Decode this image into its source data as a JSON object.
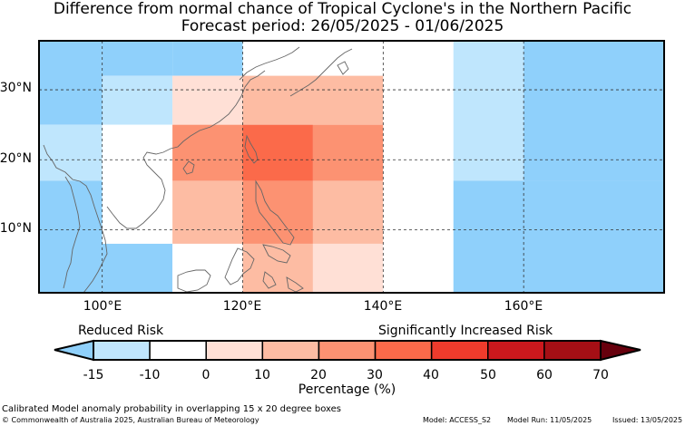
{
  "title_line1": "Difference from normal chance of Tropical Cyclone's in the Northern Pacific",
  "title_line2": "Forecast period: 26/05/2025 - 01/06/2025",
  "map": {
    "lon_range": [
      91,
      180
    ],
    "lat_range": [
      1,
      37
    ],
    "lon_gridlines": [
      100,
      120,
      140,
      160
    ],
    "lat_gridlines": [
      10,
      20,
      30
    ],
    "lon_labels": [
      "100°E",
      "120°E",
      "140°E",
      "160°E"
    ],
    "lat_labels": [
      "30°N",
      "20°N",
      "10°N"
    ],
    "cells": [
      {
        "lon0": 91,
        "lon1": 100,
        "lat0": 25,
        "lat1": 37,
        "pct": -15
      },
      {
        "lon0": 100,
        "lon1": 110,
        "lat0": 32,
        "lat1": 37,
        "pct": -15
      },
      {
        "lon0": 110,
        "lon1": 120,
        "lat0": 32,
        "lat1": 37,
        "pct": -15
      },
      {
        "lon0": 120,
        "lon1": 150,
        "lat0": 32,
        "lat1": 37,
        "pct": 0
      },
      {
        "lon0": 100,
        "lon1": 110,
        "lat0": 25,
        "lat1": 32,
        "pct": -10
      },
      {
        "lon0": 110,
        "lon1": 120,
        "lat0": 25,
        "lat1": 32,
        "pct": 5
      },
      {
        "lon0": 120,
        "lon1": 140,
        "lat0": 25,
        "lat1": 32,
        "pct": 15
      },
      {
        "lon0": 140,
        "lon1": 150,
        "lat0": 25,
        "lat1": 32,
        "pct": 0
      },
      {
        "lon0": 91,
        "lon1": 100,
        "lat0": 17,
        "lat1": 25,
        "pct": -10
      },
      {
        "lon0": 100,
        "lon1": 110,
        "lat0": 17,
        "lat1": 25,
        "pct": 0
      },
      {
        "lon0": 110,
        "lon1": 120,
        "lat0": 17,
        "lat1": 25,
        "pct": 25
      },
      {
        "lon0": 120,
        "lon1": 130,
        "lat0": 17,
        "lat1": 25,
        "pct": 35
      },
      {
        "lon0": 130,
        "lon1": 140,
        "lat0": 17,
        "lat1": 25,
        "pct": 25
      },
      {
        "lon0": 140,
        "lon1": 150,
        "lat0": 17,
        "lat1": 25,
        "pct": 0
      },
      {
        "lon0": 150,
        "lon1": 160,
        "lat0": 17,
        "lat1": 37,
        "pct": -10
      },
      {
        "lon0": 160,
        "lon1": 180,
        "lat0": 17,
        "lat1": 37,
        "pct": -15
      },
      {
        "lon0": 91,
        "lon1": 100,
        "lat0": 1,
        "lat1": 17,
        "pct": -15
      },
      {
        "lon0": 100,
        "lon1": 110,
        "lat0": 8,
        "lat1": 17,
        "pct": 0
      },
      {
        "lon0": 100,
        "lon1": 110,
        "lat0": 1,
        "lat1": 8,
        "pct": -15
      },
      {
        "lon0": 110,
        "lon1": 120,
        "lat0": 8,
        "lat1": 17,
        "pct": 15
      },
      {
        "lon0": 110,
        "lon1": 120,
        "lat0": 1,
        "lat1": 8,
        "pct": 0
      },
      {
        "lon0": 120,
        "lon1": 130,
        "lat0": 8,
        "lat1": 17,
        "pct": 25
      },
      {
        "lon0": 120,
        "lon1": 130,
        "lat0": 1,
        "lat1": 8,
        "pct": 15
      },
      {
        "lon0": 130,
        "lon1": 140,
        "lat0": 8,
        "lat1": 17,
        "pct": 15
      },
      {
        "lon0": 130,
        "lon1": 140,
        "lat0": 1,
        "lat1": 8,
        "pct": 5
      },
      {
        "lon0": 140,
        "lon1": 150,
        "lat0": 1,
        "lat1": 17,
        "pct": 0
      },
      {
        "lon0": 150,
        "lon1": 180,
        "lat0": 1,
        "lat1": 17,
        "pct": -15
      }
    ]
  },
  "colorbar": {
    "label_left": "Reduced Risk",
    "label_right": "Significantly Increased Risk",
    "tick_labels": [
      "-15",
      "-10",
      "0",
      "10",
      "20",
      "30",
      "40",
      "50",
      "60",
      "70"
    ],
    "unit_label": "Percentage (%)",
    "colors": {
      "below": "#8fd0fb",
      "b1": "#bfe6fd",
      "b2": "#ffffff",
      "b3": "#ffe0d6",
      "b4": "#fdbca3",
      "b5": "#fc9272",
      "b6": "#fb6a4a",
      "b7": "#ef3b2c",
      "b8": "#cb181d",
      "b9": "#a50f15",
      "above": "#67000d"
    }
  },
  "footer": {
    "line1": "Calibrated Model anomaly probability in overlapping 15 x 20 degree boxes",
    "line2": "© Commonwealth of Australia 2025, Australian Bureau of Meteorology",
    "model": "Model: ACCESS_S2",
    "model_run": "Model Run: 11/05/2025",
    "issued": "Issued: 13/05/2025"
  }
}
